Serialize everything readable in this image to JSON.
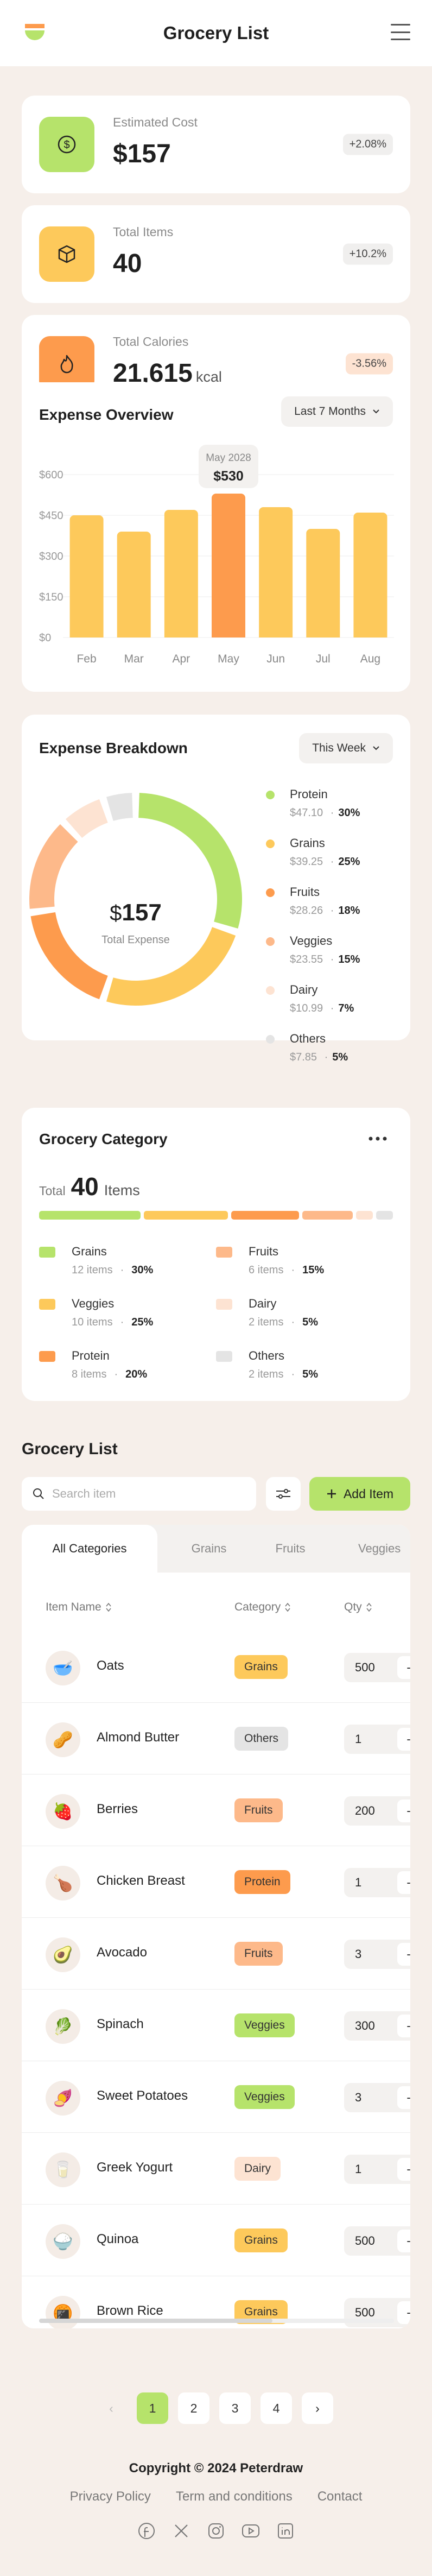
{
  "header": {
    "title": "Grocery List"
  },
  "stats": [
    {
      "label": "Estimated Cost",
      "value": "$157",
      "unit": "",
      "badge": "+2.08%",
      "icon": "dollar-icon",
      "color": "#b6e36b",
      "badge_bg": "#f0efee"
    },
    {
      "label": "Total Items",
      "value": "40",
      "unit": "",
      "badge": "+10.2%",
      "icon": "box-icon",
      "color": "#fdc95b",
      "badge_bg": "#f0efee"
    },
    {
      "label": "Total Calories",
      "value": "21,615",
      "unit": "kcal",
      "badge": "-3.56%",
      "icon": "fire-icon",
      "color": "#fd9b4d",
      "badge_bg": "#fde3d2"
    }
  ],
  "expense_overview": {
    "title": "Expense Overview",
    "period": "Last 7 Months",
    "tooltip": {
      "month": "May 2028",
      "value": "$530"
    },
    "chart_data": {
      "type": "bar",
      "categories": [
        "Feb",
        "Mar",
        "Apr",
        "May",
        "Jun",
        "Jul",
        "Aug"
      ],
      "values": [
        450,
        390,
        470,
        530,
        480,
        400,
        460
      ],
      "ylim": [
        0,
        600
      ],
      "yticks": [
        "$0",
        "$150",
        "$300",
        "$450",
        "$600"
      ],
      "highlight": "May",
      "colors": {
        "bar": "#fdc95b",
        "highlight": "#fd9b4d"
      }
    }
  },
  "expense_breakdown": {
    "title": "Expense Breakdown",
    "period": "This Week",
    "center_value": "157",
    "center_currency": "$",
    "center_label": "Total Expense",
    "chart_data": {
      "type": "pie",
      "categories": [
        "Protein",
        "Grains",
        "Fruits",
        "Veggies",
        "Dairy",
        "Others"
      ],
      "values": [
        47.1,
        39.25,
        28.26,
        23.55,
        10.99,
        7.85
      ],
      "percent": [
        30,
        25,
        18,
        15,
        7,
        5
      ],
      "colors": [
        "#b6e36b",
        "#fdc95b",
        "#fd9b4d",
        "#fdb98a",
        "#fde3d2",
        "#e4e4e4"
      ]
    },
    "legend": [
      {
        "name": "Protein",
        "amount": "$47.10",
        "pct": "30%",
        "color": "#b6e36b"
      },
      {
        "name": "Grains",
        "amount": "$39.25",
        "pct": "25%",
        "color": "#fdc95b"
      },
      {
        "name": "Fruits",
        "amount": "$28.26",
        "pct": "18%",
        "color": "#fd9b4d"
      },
      {
        "name": "Veggies",
        "amount": "$23.55",
        "pct": "15%",
        "color": "#fdb98a"
      },
      {
        "name": "Dairy",
        "amount": "$10.99",
        "pct": "7%",
        "color": "#fde3d2"
      },
      {
        "name": "Others",
        "amount": "$7.85",
        "pct": "5%",
        "color": "#e4e4e4"
      }
    ]
  },
  "grocery_category": {
    "title": "Grocery Category",
    "total_label": "Total",
    "total_value": "40",
    "total_unit": "Items",
    "items": [
      {
        "name": "Grains",
        "count": "12 items",
        "pct": "30%",
        "share": 30,
        "color": "#b6e36b"
      },
      {
        "name": "Veggies",
        "count": "10 items",
        "pct": "25%",
        "share": 25,
        "color": "#fdc95b"
      },
      {
        "name": "Protein",
        "count": "8 items",
        "pct": "20%",
        "share": 20,
        "color": "#fd9b4d"
      },
      {
        "name": "Fruits",
        "count": "6 items",
        "pct": "15%",
        "share": 15,
        "color": "#fdb98a"
      },
      {
        "name": "Dairy",
        "count": "2 items",
        "pct": "5%",
        "share": 5,
        "color": "#fde3d2"
      },
      {
        "name": "Others",
        "count": "2 items",
        "pct": "5%",
        "share": 5,
        "color": "#e4e4e4"
      }
    ]
  },
  "grocery_list": {
    "title": "Grocery List",
    "search_placeholder": "Search item",
    "add_label": "Add Item",
    "tabs": [
      "All Categories",
      "Grains",
      "Fruits",
      "Veggies"
    ],
    "columns": [
      "Item Name",
      "Category",
      "Qty"
    ],
    "rows": [
      {
        "name": "Oats",
        "category": "Grains",
        "qty": "500",
        "emoji": "🥣",
        "cat_color": "#fdc95b"
      },
      {
        "name": "Almond Butter",
        "category": "Others",
        "qty": "1",
        "emoji": "🥜",
        "cat_color": "#e4e4e4"
      },
      {
        "name": "Berries",
        "category": "Fruits",
        "qty": "200",
        "emoji": "🍓",
        "cat_color": "#fdb98a"
      },
      {
        "name": "Chicken Breast",
        "category": "Protein",
        "qty": "1",
        "emoji": "🍗",
        "cat_color": "#fd9b4d"
      },
      {
        "name": "Avocado",
        "category": "Fruits",
        "qty": "3",
        "emoji": "🥑",
        "cat_color": "#fdb98a"
      },
      {
        "name": "Spinach",
        "category": "Veggies",
        "qty": "300",
        "emoji": "🥬",
        "cat_color": "#b6e36b"
      },
      {
        "name": "Sweet Potatoes",
        "category": "Veggies",
        "qty": "3",
        "emoji": "🍠",
        "cat_color": "#b6e36b"
      },
      {
        "name": "Greek Yogurt",
        "category": "Dairy",
        "qty": "1",
        "emoji": "🥛",
        "cat_color": "#fde3d2"
      },
      {
        "name": "Quinoa",
        "category": "Grains",
        "qty": "500",
        "emoji": "🍚",
        "cat_color": "#fdc95b"
      },
      {
        "name": "Brown Rice",
        "category": "Grains",
        "qty": "500",
        "emoji": "🍘",
        "cat_color": "#fdc95b"
      }
    ],
    "qty_minus": "-"
  },
  "pagination": {
    "prev": "‹",
    "pages": [
      "1",
      "2",
      "3",
      "4"
    ],
    "next": "›",
    "current": "1"
  },
  "footer": {
    "copyright": "Copyright © 2024 Peterdraw",
    "links": [
      "Privacy Policy",
      "Term and conditions",
      "Contact"
    ],
    "socials": [
      "facebook-icon",
      "x-icon",
      "instagram-icon",
      "youtube-icon",
      "linkedin-icon"
    ]
  }
}
